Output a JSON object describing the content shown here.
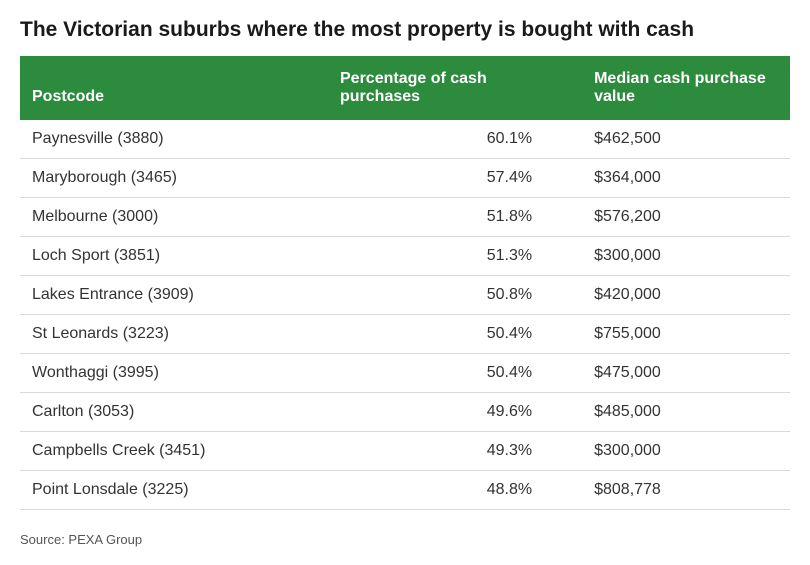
{
  "title": "The Victorian suburbs where the most property is bought with cash",
  "source": "Source: PEXA Group",
  "table": {
    "type": "table",
    "header_bg_color": "#2d8b3e",
    "header_text_color": "#ffffff",
    "row_border_color": "#d9d9d9",
    "body_text_color": "#333333",
    "title_fontsize": 21,
    "body_fontsize": 16,
    "columns": [
      {
        "key": "postcode",
        "label": "Postcode",
        "align": "left",
        "width_pct": 40
      },
      {
        "key": "pct",
        "label": "Percentage of cash purchases",
        "align": "right",
        "width_pct": 33
      },
      {
        "key": "median",
        "label": "Median cash purchase value",
        "align": "left",
        "width_pct": 27
      }
    ],
    "rows": [
      {
        "postcode": "Paynesville (3880)",
        "pct": "60.1%",
        "median": "$462,500"
      },
      {
        "postcode": "Maryborough (3465)",
        "pct": "57.4%",
        "median": "$364,000"
      },
      {
        "postcode": "Melbourne (3000)",
        "pct": "51.8%",
        "median": "$576,200"
      },
      {
        "postcode": "Loch Sport (3851)",
        "pct": "51.3%",
        "median": "$300,000"
      },
      {
        "postcode": "Lakes Entrance (3909)",
        "pct": "50.8%",
        "median": "$420,000"
      },
      {
        "postcode": "St Leonards (3223)",
        "pct": "50.4%",
        "median": "$755,000"
      },
      {
        "postcode": "Wonthaggi (3995)",
        "pct": "50.4%",
        "median": "$475,000"
      },
      {
        "postcode": "Carlton (3053)",
        "pct": "49.6%",
        "median": "$485,000"
      },
      {
        "postcode": "Campbells Creek (3451)",
        "pct": "49.3%",
        "median": "$300,000"
      },
      {
        "postcode": "Point Lonsdale (3225)",
        "pct": "48.8%",
        "median": "$808,778"
      }
    ]
  }
}
